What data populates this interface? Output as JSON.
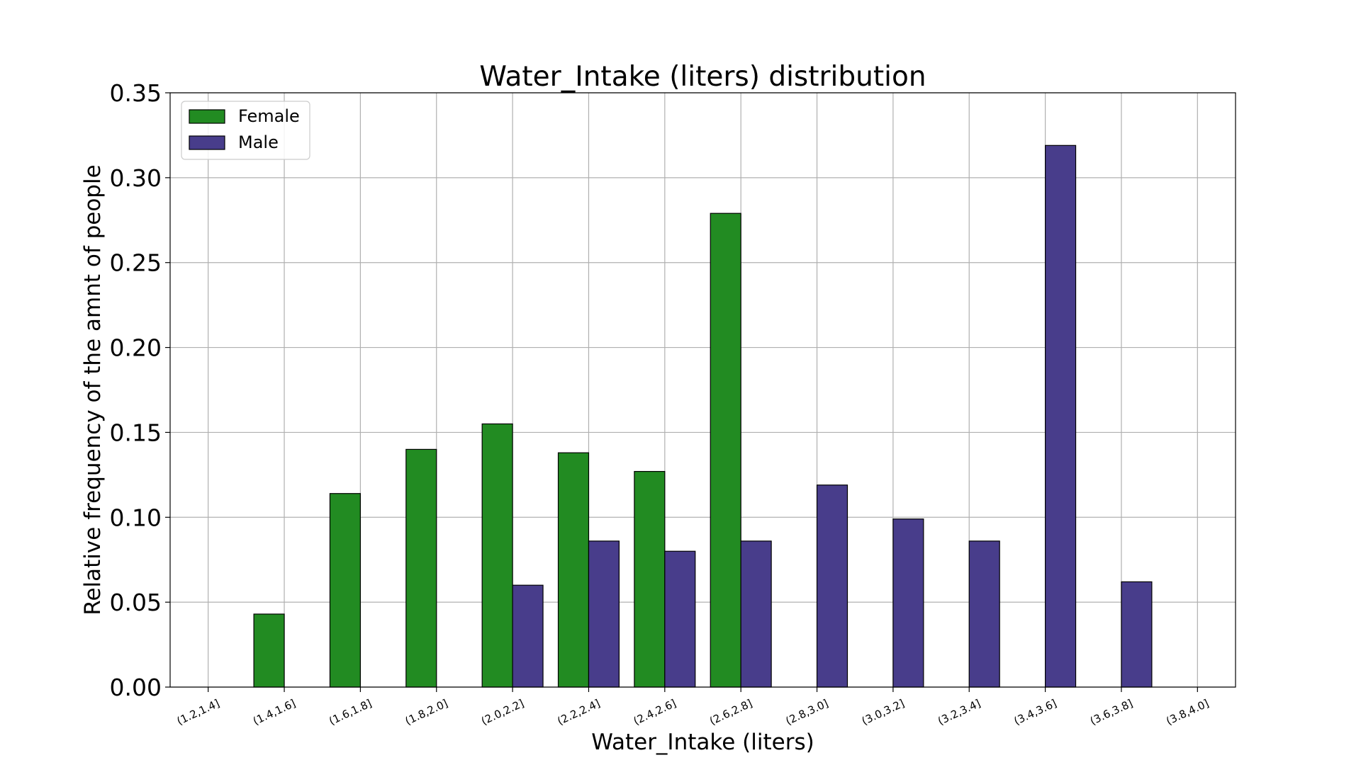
{
  "chart_data": {
    "type": "bar",
    "title": "Water_Intake (liters) distribution",
    "xlabel": "Water_Intake (liters)",
    "ylabel": "Relative frequency of the amnt of people",
    "categories": [
      "(1.2,1.4]",
      "(1.4,1.6]",
      "(1.6,1.8]",
      "(1.8,2.0]",
      "(2.0,2.2]",
      "(2.2,2.4]",
      "(2.4,2.6]",
      "(2.6,2.8]",
      "(2.8,3.0]",
      "(3.0,3.2]",
      "(3.2,3.4]",
      "(3.4,3.6]",
      "(3.6,3.8]",
      "(3.8,4.0]"
    ],
    "series": [
      {
        "name": "Female",
        "color": "#228B22",
        "values": [
          0.0,
          0.043,
          0.114,
          0.14,
          0.155,
          0.138,
          0.127,
          0.279,
          0.0,
          0.0,
          0.0,
          0.0,
          0.0,
          0.0
        ]
      },
      {
        "name": "Male",
        "color": "#483D8B",
        "values": [
          0.0,
          0.0,
          0.0,
          0.0,
          0.06,
          0.086,
          0.08,
          0.086,
          0.119,
          0.099,
          0.086,
          0.319,
          0.062,
          0.0
        ]
      }
    ],
    "ylim": [
      0,
      0.35
    ],
    "yticks": [
      "0.00",
      "0.05",
      "0.10",
      "0.15",
      "0.20",
      "0.25",
      "0.30",
      "0.35"
    ],
    "grid": true,
    "legend_position": "top-left"
  }
}
